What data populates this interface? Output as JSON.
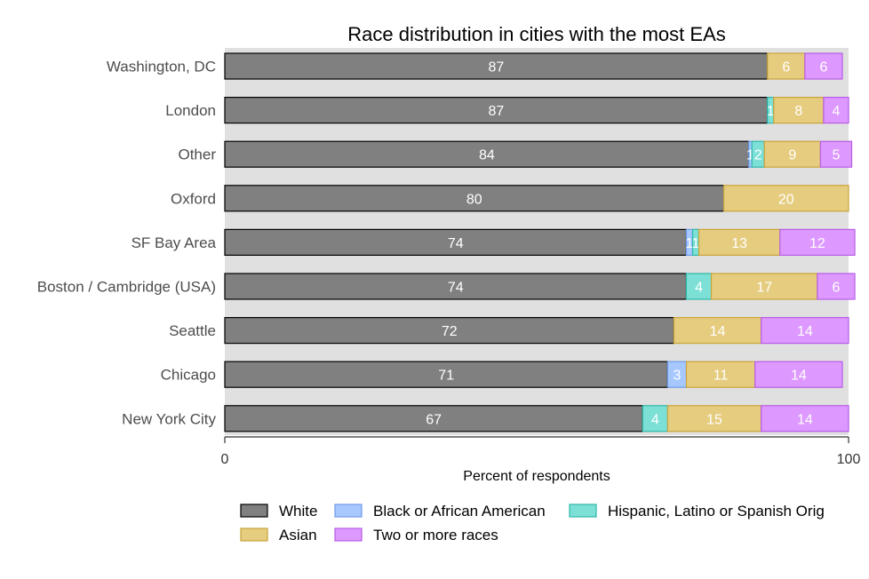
{
  "chart_data": {
    "type": "bar",
    "orientation": "horizontal",
    "stacked": true,
    "title": "Race distribution in cities with the most EAs",
    "xlabel": "Percent of respondents",
    "ylabel": "",
    "xlim": [
      0,
      100
    ],
    "xticks": [
      "0",
      "100"
    ],
    "legend_position": "bottom",
    "categories": [
      "Washington, DC",
      "London",
      "Other",
      "Oxford",
      "SF Bay Area",
      "Boston / Cambridge (USA)",
      "Seattle",
      "Chicago",
      "New York City"
    ],
    "series": [
      {
        "name": "White",
        "color": "#808080",
        "stroke": "#000000",
        "values": [
          87,
          87,
          84,
          80,
          74,
          74,
          72,
          71,
          67
        ]
      },
      {
        "name": "Black or African American",
        "color": "#a6c8ff",
        "stroke": "#6f9be8",
        "values": [
          0,
          0,
          0.5,
          0,
          1,
          0,
          0,
          3,
          0
        ]
      },
      {
        "name": "Hispanic, Latino or Spanish Orig",
        "color": "#7de0d6",
        "stroke": "#2fb8a8",
        "values": [
          0,
          1,
          2,
          0,
          1,
          4,
          0,
          0,
          4
        ]
      },
      {
        "name": "Asian",
        "color": "#e6cc7f",
        "stroke": "#c9a43a",
        "values": [
          6,
          8,
          9,
          20,
          13,
          17,
          14,
          11,
          15
        ]
      },
      {
        "name": "Two or more races",
        "color": "#dd99ff",
        "stroke": "#b85ce6",
        "values": [
          6,
          4,
          5,
          0,
          12,
          6,
          14,
          14,
          14
        ]
      }
    ],
    "labels": [
      [
        "87",
        "",
        "",
        "6",
        "6"
      ],
      [
        "87",
        "",
        "1",
        "8",
        "4"
      ],
      [
        "84",
        "1",
        "2",
        "9",
        "5"
      ],
      [
        "80",
        "",
        "",
        "20",
        ""
      ],
      [
        "74",
        "1",
        "1",
        "13",
        "12"
      ],
      [
        "74",
        "",
        "4",
        "17",
        "6"
      ],
      [
        "72",
        "",
        "",
        "14",
        "14"
      ],
      [
        "71",
        "3",
        "",
        "11",
        "14"
      ],
      [
        "67",
        "",
        "4",
        "15",
        "14"
      ]
    ],
    "legend_order": [
      0,
      1,
      2,
      3,
      4
    ]
  }
}
